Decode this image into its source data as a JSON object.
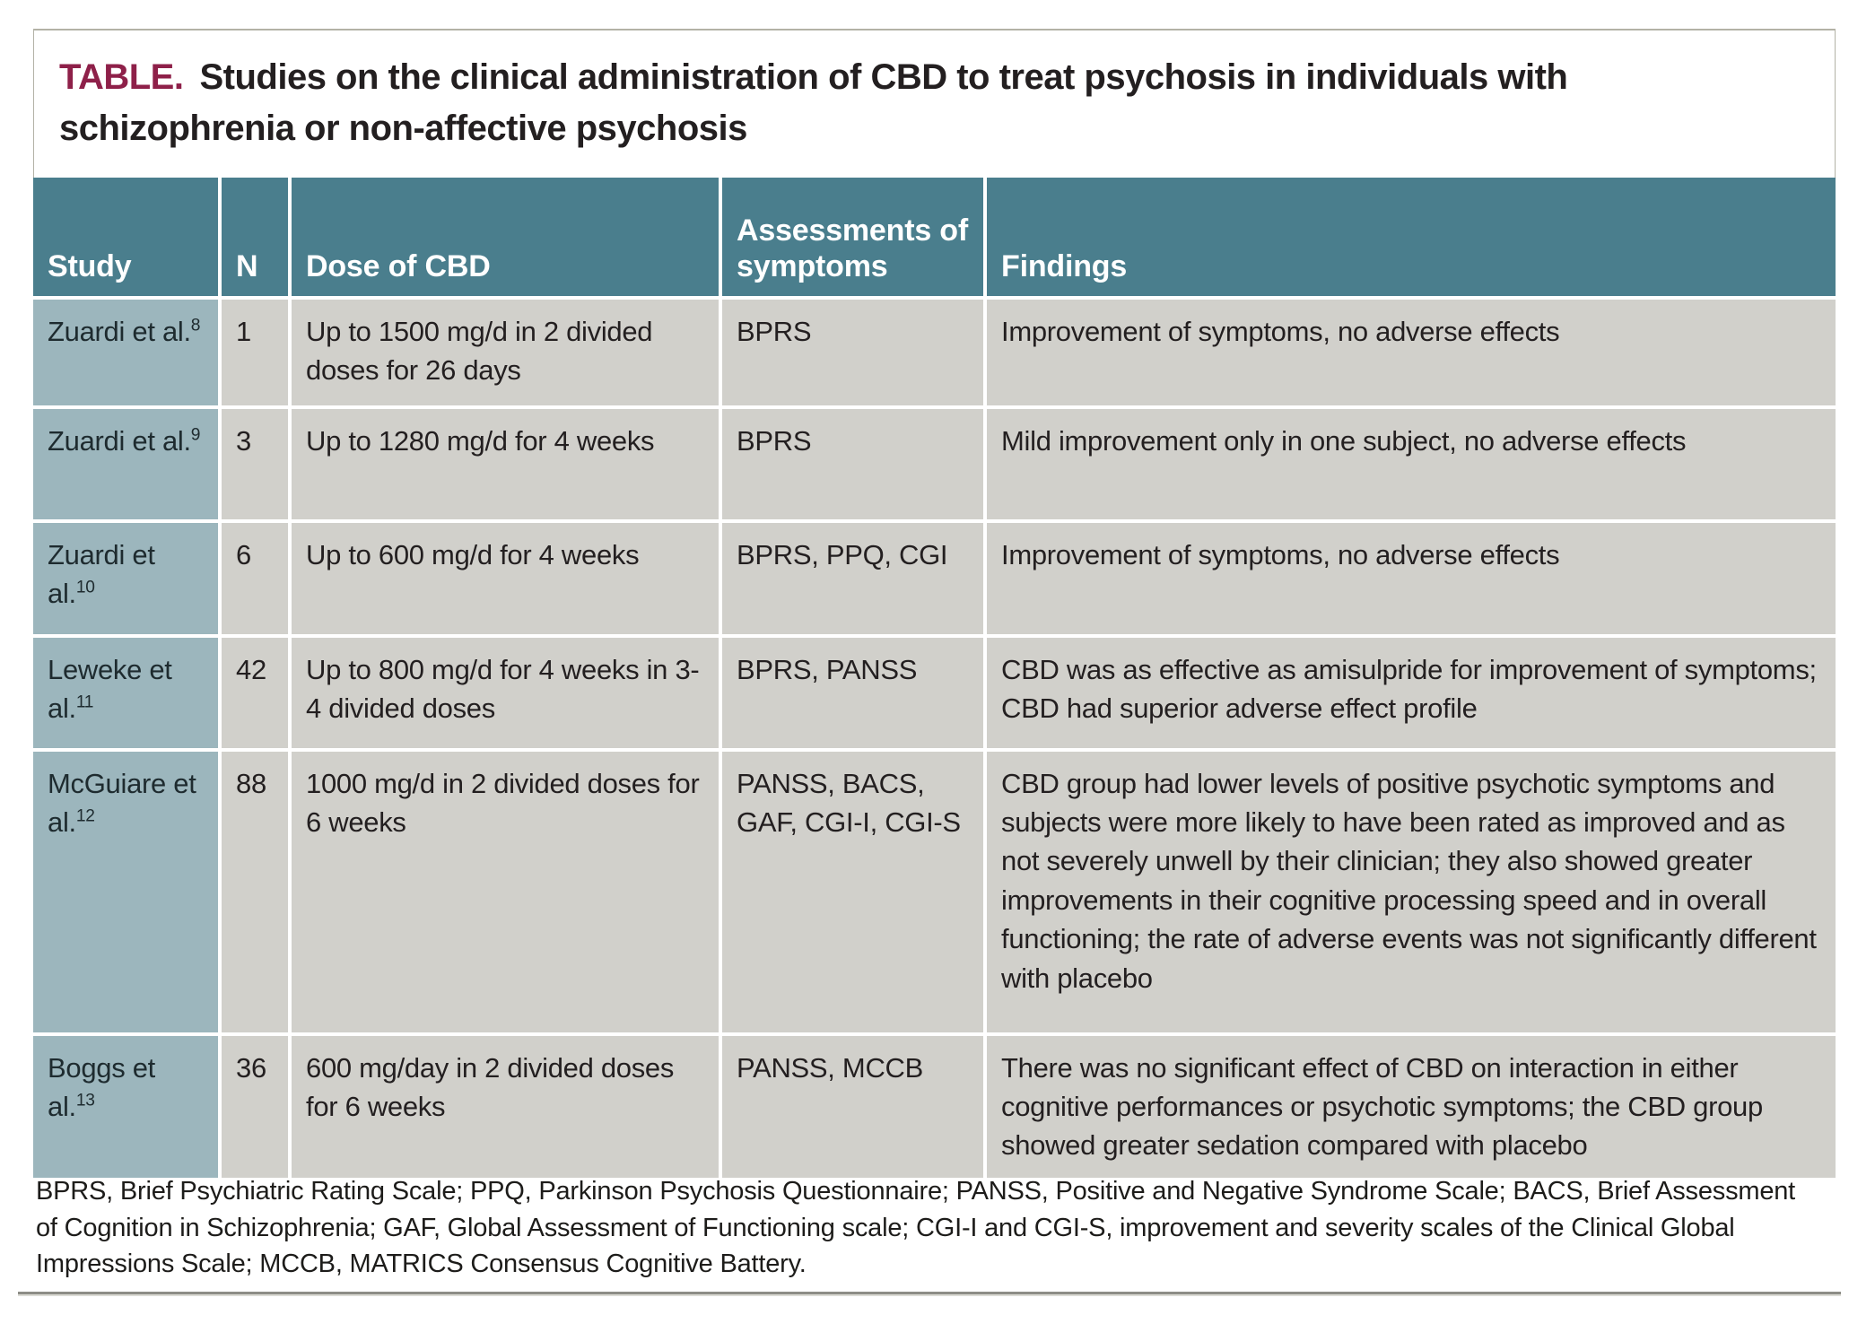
{
  "title": {
    "label": "TABLE.",
    "text": "Studies on the clinical administration of CBD to treat psychosis in individuals with schizophrenia or non-affective psychosis"
  },
  "table": {
    "columns": [
      "Study",
      "N",
      "Dose of CBD",
      "Assessments of symptoms",
      "Findings"
    ],
    "rows": [
      {
        "study": "Zuardi et al.",
        "ref": "8",
        "n": "1",
        "dose": "Up to 1500 mg/d in 2 divided doses for 26 days",
        "assessments": "BPRS",
        "findings": "Improvement of symptoms, no adverse effects"
      },
      {
        "study": "Zuardi et al.",
        "ref": "9",
        "n": "3",
        "dose": "Up to 1280 mg/d for 4 weeks",
        "assessments": "BPRS",
        "findings": "Mild improvement only in one subject, no adverse effects"
      },
      {
        "study": "Zuardi et al.",
        "ref": "10",
        "n": "6",
        "dose": "Up to 600 mg/d for 4 weeks",
        "assessments": "BPRS, PPQ, CGI",
        "findings": "Improvement of symptoms, no adverse effects"
      },
      {
        "study": "Leweke et al.",
        "ref": "11",
        "n": "42",
        "dose": "Up to 800 mg/d for 4 weeks in 3-4 divided doses",
        "assessments": "BPRS, PANSS",
        "findings": "CBD was as effective as amisulpride for improvement of symptoms; CBD had superior adverse effect profile"
      },
      {
        "study": "McGuiare et al.",
        "ref": "12",
        "n": "88",
        "dose": "1000 mg/d in 2 divided doses for 6 weeks",
        "assessments": "PANSS, BACS, GAF, CGI-I, CGI-S",
        "findings": "CBD group had lower levels of positive psychotic symptoms and subjects were more likely to have been rated as improved and as not severely unwell by their clinician; they also showed greater improvements in their cognitive processing speed and in overall functioning; the rate of adverse events was not significantly different with placebo"
      },
      {
        "study": "Boggs et al.",
        "ref": "13",
        "n": "36",
        "dose": "600 mg/day in 2 divided doses for 6 weeks",
        "assessments": "PANSS, MCCB",
        "findings": "There was no significant effect of CBD on interaction in either cognitive performances or psychotic symptoms; the CBD group showed greater sedation compared with placebo"
      }
    ]
  },
  "footnote": "BPRS, Brief Psychiatric Rating Scale; PPQ, Parkinson Psychosis Questionnaire; PANSS, Positive and Negative Syndrome Scale; BACS, Brief Assessment of Cognition in Schizophrenia; GAF, Global Assessment of Functioning scale; CGI-I and CGI-S, improvement and severity scales of the Clinical Global Impressions Scale; MCCB, MATRICS Consensus Cognitive Battery.",
  "colors": {
    "header_teal": "#4a7e8d",
    "study_column_teal": "#9cb6bd",
    "cell_gray": "#d1d0cb",
    "title_label_maroon": "#8e2049",
    "text": "#231f20"
  }
}
